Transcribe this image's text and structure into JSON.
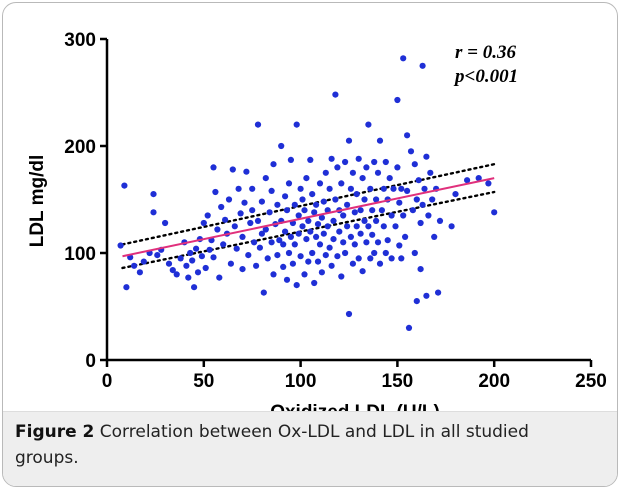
{
  "caption": {
    "label": "Figure 2",
    "text": " Correlation between Ox-LDL and LDL in all studied groups."
  },
  "chart_data": {
    "type": "scatter",
    "xlabel": "Oxidized LDL (U/L)",
    "ylabel": "LDL mg/dl",
    "xlim": [
      0,
      250
    ],
    "ylim": [
      0,
      300
    ],
    "xticks": [
      "0",
      "50",
      "100",
      "150",
      "200",
      "250"
    ],
    "yticks": [
      "0",
      "100",
      "200",
      "300"
    ],
    "grid": false,
    "annotations": [
      "r = 0.36",
      "p<0.001"
    ],
    "colors": {
      "points": "#1f2fd6",
      "fit_line": "#e0307c",
      "ci_lines": "#000000"
    },
    "fit_line": {
      "x": [
        8,
        200
      ],
      "y": [
        97,
        170
      ]
    },
    "ci_upper": {
      "x": [
        8,
        200
      ],
      "y": [
        108,
        183
      ]
    },
    "ci_lower": {
      "x": [
        8,
        200
      ],
      "y": [
        86,
        157
      ]
    },
    "points": [
      [
        7,
        107
      ],
      [
        9,
        163
      ],
      [
        10,
        68
      ],
      [
        12,
        96
      ],
      [
        14,
        88
      ],
      [
        17,
        82
      ],
      [
        19,
        92
      ],
      [
        22,
        100
      ],
      [
        24,
        155
      ],
      [
        24,
        138
      ],
      [
        26,
        98
      ],
      [
        28,
        103
      ],
      [
        30,
        128
      ],
      [
        32,
        90
      ],
      [
        34,
        84
      ],
      [
        36,
        80
      ],
      [
        38,
        95
      ],
      [
        40,
        110
      ],
      [
        41,
        88
      ],
      [
        42,
        77
      ],
      [
        43,
        100
      ],
      [
        44,
        93
      ],
      [
        45,
        68
      ],
      [
        46,
        104
      ],
      [
        47,
        82
      ],
      [
        48,
        113
      ],
      [
        49,
        97
      ],
      [
        50,
        128
      ],
      [
        51,
        86
      ],
      [
        52,
        135
      ],
      [
        53,
        103
      ],
      [
        54,
        112
      ],
      [
        55,
        180
      ],
      [
        55,
        96
      ],
      [
        56,
        157
      ],
      [
        57,
        122
      ],
      [
        58,
        77
      ],
      [
        59,
        143
      ],
      [
        60,
        108
      ],
      [
        61,
        131
      ],
      [
        62,
        118
      ],
      [
        63,
        150
      ],
      [
        64,
        90
      ],
      [
        65,
        178
      ],
      [
        66,
        125
      ],
      [
        67,
        104
      ],
      [
        68,
        160
      ],
      [
        69,
        137
      ],
      [
        70,
        85
      ],
      [
        70,
        115
      ],
      [
        71,
        147
      ],
      [
        72,
        176
      ],
      [
        73,
        98
      ],
      [
        74,
        128
      ],
      [
        75,
        140
      ],
      [
        75,
        160
      ],
      [
        76,
        110
      ],
      [
        77,
        88
      ],
      [
        78,
        220
      ],
      [
        78,
        130
      ],
      [
        79,
        105
      ],
      [
        80,
        148
      ],
      [
        80,
        118
      ],
      [
        81,
        63
      ],
      [
        82,
        170
      ],
      [
        82,
        122
      ],
      [
        83,
        95
      ],
      [
        84,
        138
      ],
      [
        85,
        110
      ],
      [
        85,
        158
      ],
      [
        86,
        80
      ],
      [
        86,
        183
      ],
      [
        87,
        127
      ],
      [
        88,
        98
      ],
      [
        88,
        145
      ],
      [
        89,
        112
      ],
      [
        90,
        200
      ],
      [
        90,
        130
      ],
      [
        91,
        87
      ],
      [
        91,
        108
      ],
      [
        92,
        153
      ],
      [
        92,
        120
      ],
      [
        93,
        75
      ],
      [
        93,
        140
      ],
      [
        94,
        100
      ],
      [
        94,
        165
      ],
      [
        95,
        115
      ],
      [
        95,
        187
      ],
      [
        96,
        90
      ],
      [
        96,
        128
      ],
      [
        97,
        145
      ],
      [
        97,
        108
      ],
      [
        98,
        70
      ],
      [
        98,
        220
      ],
      [
        99,
        135
      ],
      [
        99,
        118
      ],
      [
        100,
        160
      ],
      [
        100,
        97
      ],
      [
        101,
        150
      ],
      [
        101,
        125
      ],
      [
        102,
        80
      ],
      [
        102,
        140
      ],
      [
        103,
        113
      ],
      [
        103,
        170
      ],
      [
        104,
        92
      ],
      [
        104,
        130
      ],
      [
        105,
        120
      ],
      [
        105,
        187
      ],
      [
        106,
        100
      ],
      [
        106,
        155
      ],
      [
        107,
        138
      ],
      [
        107,
        72
      ],
      [
        108,
        115
      ],
      [
        108,
        145
      ],
      [
        109,
        127
      ],
      [
        109,
        92
      ],
      [
        110,
        165
      ],
      [
        110,
        108
      ],
      [
        111,
        133
      ],
      [
        111,
        82
      ],
      [
        112,
        118
      ],
      [
        112,
        148
      ],
      [
        113,
        175
      ],
      [
        113,
        98
      ],
      [
        114,
        125
      ],
      [
        114,
        140
      ],
      [
        115,
        105
      ],
      [
        115,
        160
      ],
      [
        116,
        188
      ],
      [
        116,
        88
      ],
      [
        117,
        130
      ],
      [
        117,
        113
      ],
      [
        118,
        248
      ],
      [
        118,
        150
      ],
      [
        119,
        97
      ],
      [
        119,
        180
      ],
      [
        120,
        120
      ],
      [
        120,
        140
      ],
      [
        121,
        78
      ],
      [
        121,
        165
      ],
      [
        122,
        110
      ],
      [
        122,
        135
      ],
      [
        123,
        185
      ],
      [
        123,
        100
      ],
      [
        124,
        145
      ],
      [
        124,
        125
      ],
      [
        125,
        43
      ],
      [
        125,
        205
      ],
      [
        126,
        115
      ],
      [
        126,
        160
      ],
      [
        127,
        90
      ],
      [
        127,
        175
      ],
      [
        128,
        138
      ],
      [
        128,
        108
      ],
      [
        129,
        155
      ],
      [
        129,
        125
      ],
      [
        130,
        188
      ],
      [
        130,
        95
      ],
      [
        131,
        140
      ],
      [
        131,
        118
      ],
      [
        132,
        170
      ],
      [
        132,
        83
      ],
      [
        133,
        130
      ],
      [
        133,
        150
      ],
      [
        134,
        110
      ],
      [
        134,
        180
      ],
      [
        135,
        220
      ],
      [
        135,
        125
      ],
      [
        136,
        95
      ],
      [
        136,
        160
      ],
      [
        137,
        140
      ],
      [
        137,
        117
      ],
      [
        138,
        185
      ],
      [
        138,
        100
      ],
      [
        139,
        150
      ],
      [
        139,
        130
      ],
      [
        140,
        110
      ],
      [
        140,
        175
      ],
      [
        141,
        205
      ],
      [
        141,
        90
      ],
      [
        142,
        140
      ],
      [
        143,
        160
      ],
      [
        143,
        125
      ],
      [
        144,
        100
      ],
      [
        144,
        185
      ],
      [
        145,
        150
      ],
      [
        145,
        112
      ],
      [
        146,
        170
      ],
      [
        147,
        135
      ],
      [
        147,
        95
      ],
      [
        148,
        160
      ],
      [
        149,
        125
      ],
      [
        150,
        243
      ],
      [
        150,
        180
      ],
      [
        151,
        147
      ],
      [
        151,
        107
      ],
      [
        152,
        95
      ],
      [
        152,
        160
      ],
      [
        153,
        282
      ],
      [
        153,
        135
      ],
      [
        154,
        115
      ],
      [
        155,
        158
      ],
      [
        155,
        210
      ],
      [
        156,
        30
      ],
      [
        157,
        195
      ],
      [
        158,
        140
      ],
      [
        159,
        183
      ],
      [
        159,
        100
      ],
      [
        160,
        55
      ],
      [
        160,
        150
      ],
      [
        161,
        168
      ],
      [
        162,
        85
      ],
      [
        162,
        128
      ],
      [
        163,
        275
      ],
      [
        163,
        145
      ],
      [
        164,
        160
      ],
      [
        165,
        60
      ],
      [
        165,
        190
      ],
      [
        166,
        135
      ],
      [
        167,
        175
      ],
      [
        168,
        150
      ],
      [
        169,
        115
      ],
      [
        170,
        160
      ],
      [
        171,
        63
      ],
      [
        172,
        130
      ],
      [
        178,
        125
      ],
      [
        180,
        155
      ],
      [
        186,
        168
      ],
      [
        192,
        170
      ],
      [
        197,
        165
      ],
      [
        200,
        138
      ]
    ]
  }
}
